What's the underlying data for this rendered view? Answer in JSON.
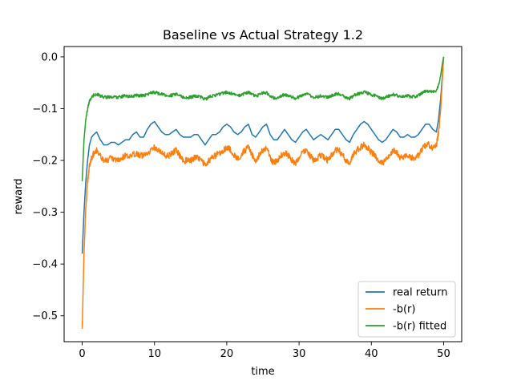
{
  "chart_data": {
    "type": "line",
    "title": "Baseline vs Actual Strategy 1.2",
    "xlabel": "time",
    "ylabel": "reward",
    "xlim": [
      -2.5,
      52.5
    ],
    "ylim": [
      -0.55,
      0.02
    ],
    "xticks": [
      0,
      10,
      20,
      30,
      40,
      50
    ],
    "yticks": [
      0.0,
      -0.1,
      -0.2,
      -0.3,
      -0.4,
      -0.5
    ],
    "xtick_labels": [
      "0",
      "10",
      "20",
      "30",
      "40",
      "50"
    ],
    "ytick_labels": [
      "0.0",
      "−0.1",
      "−0.2",
      "−0.3",
      "−0.4",
      "−0.5"
    ],
    "grid": false,
    "legend_position": "lower-right",
    "series": [
      {
        "name": "real return",
        "color": "#1f77b4",
        "x": [
          0,
          0.25,
          0.5,
          0.75,
          1,
          1.3,
          1.6,
          2,
          2.5,
          3,
          3.5,
          4,
          4.5,
          5,
          5.5,
          6,
          6.5,
          7,
          7.5,
          8,
          8.5,
          9,
          9.5,
          10,
          10.5,
          11,
          11.5,
          12,
          12.5,
          13,
          13.5,
          14,
          14.5,
          15,
          15.5,
          16,
          16.5,
          17,
          17.5,
          18,
          18.5,
          19,
          19.5,
          20,
          20.5,
          21,
          21.5,
          22,
          22.5,
          23,
          23.5,
          24,
          24.5,
          25,
          25.5,
          26,
          26.5,
          27,
          27.5,
          28,
          28.5,
          29,
          29.5,
          30,
          30.5,
          31,
          31.5,
          32,
          32.5,
          33,
          33.5,
          34,
          34.5,
          35,
          35.5,
          36,
          36.5,
          37,
          37.5,
          38,
          38.5,
          39,
          39.5,
          40,
          40.5,
          41,
          41.5,
          42,
          42.5,
          43,
          43.5,
          44,
          44.5,
          45,
          45.5,
          46,
          46.5,
          47,
          47.5,
          48,
          48.5,
          49,
          49.3,
          49.6,
          49.8,
          50
        ],
        "y": [
          -0.38,
          -0.3,
          -0.24,
          -0.2,
          -0.17,
          -0.155,
          -0.15,
          -0.145,
          -0.16,
          -0.17,
          -0.17,
          -0.165,
          -0.165,
          -0.17,
          -0.165,
          -0.16,
          -0.16,
          -0.15,
          -0.145,
          -0.155,
          -0.155,
          -0.14,
          -0.13,
          -0.125,
          -0.135,
          -0.145,
          -0.15,
          -0.15,
          -0.145,
          -0.14,
          -0.15,
          -0.155,
          -0.155,
          -0.155,
          -0.15,
          -0.15,
          -0.16,
          -0.17,
          -0.16,
          -0.15,
          -0.15,
          -0.145,
          -0.135,
          -0.13,
          -0.135,
          -0.145,
          -0.15,
          -0.145,
          -0.135,
          -0.13,
          -0.15,
          -0.155,
          -0.145,
          -0.135,
          -0.13,
          -0.15,
          -0.16,
          -0.16,
          -0.15,
          -0.14,
          -0.15,
          -0.16,
          -0.165,
          -0.155,
          -0.145,
          -0.14,
          -0.15,
          -0.16,
          -0.155,
          -0.15,
          -0.155,
          -0.16,
          -0.15,
          -0.14,
          -0.14,
          -0.15,
          -0.16,
          -0.165,
          -0.15,
          -0.14,
          -0.13,
          -0.125,
          -0.13,
          -0.14,
          -0.15,
          -0.16,
          -0.165,
          -0.16,
          -0.15,
          -0.14,
          -0.145,
          -0.155,
          -0.155,
          -0.15,
          -0.155,
          -0.155,
          -0.15,
          -0.14,
          -0.13,
          -0.13,
          -0.14,
          -0.145,
          -0.12,
          -0.08,
          -0.04,
          0.0
        ],
        "noise": 0
      },
      {
        "name": "-b(r)",
        "color": "#ff7f0e",
        "x": [
          0,
          0.25,
          0.5,
          0.75,
          1,
          1.3,
          1.6,
          2,
          2.5,
          3,
          3.5,
          4,
          4.5,
          5,
          5.5,
          6,
          6.5,
          7,
          7.5,
          8,
          8.5,
          9,
          9.5,
          10,
          10.5,
          11,
          11.5,
          12,
          12.5,
          13,
          13.5,
          14,
          14.5,
          15,
          15.5,
          16,
          16.5,
          17,
          17.5,
          18,
          18.5,
          19,
          19.5,
          20,
          20.5,
          21,
          21.5,
          22,
          22.5,
          23,
          23.5,
          24,
          24.5,
          25,
          25.5,
          26,
          26.5,
          27,
          27.5,
          28,
          28.5,
          29,
          29.5,
          30,
          30.5,
          31,
          31.5,
          32,
          32.5,
          33,
          33.5,
          34,
          34.5,
          35,
          35.5,
          36,
          36.5,
          37,
          37.5,
          38,
          38.5,
          39,
          39.5,
          40,
          40.5,
          41,
          41.5,
          42,
          42.5,
          43,
          43.5,
          44,
          44.5,
          45,
          45.5,
          46,
          46.5,
          47,
          47.5,
          48,
          48.5,
          49,
          49.3,
          49.6,
          49.8,
          50
        ],
        "y": [
          -0.525,
          -0.38,
          -0.29,
          -0.24,
          -0.21,
          -0.195,
          -0.185,
          -0.18,
          -0.19,
          -0.2,
          -0.2,
          -0.195,
          -0.2,
          -0.2,
          -0.195,
          -0.19,
          -0.195,
          -0.19,
          -0.185,
          -0.19,
          -0.19,
          -0.185,
          -0.18,
          -0.175,
          -0.18,
          -0.185,
          -0.19,
          -0.19,
          -0.185,
          -0.18,
          -0.19,
          -0.2,
          -0.2,
          -0.2,
          -0.195,
          -0.195,
          -0.2,
          -0.21,
          -0.2,
          -0.195,
          -0.19,
          -0.185,
          -0.18,
          -0.175,
          -0.18,
          -0.19,
          -0.195,
          -0.19,
          -0.18,
          -0.175,
          -0.19,
          -0.2,
          -0.19,
          -0.18,
          -0.175,
          -0.195,
          -0.205,
          -0.2,
          -0.19,
          -0.185,
          -0.19,
          -0.2,
          -0.205,
          -0.195,
          -0.185,
          -0.18,
          -0.19,
          -0.2,
          -0.195,
          -0.19,
          -0.195,
          -0.2,
          -0.19,
          -0.18,
          -0.18,
          -0.19,
          -0.2,
          -0.205,
          -0.19,
          -0.18,
          -0.175,
          -0.17,
          -0.175,
          -0.185,
          -0.19,
          -0.2,
          -0.205,
          -0.2,
          -0.19,
          -0.18,
          -0.185,
          -0.195,
          -0.195,
          -0.19,
          -0.195,
          -0.195,
          -0.19,
          -0.18,
          -0.17,
          -0.17,
          -0.175,
          -0.17,
          -0.145,
          -0.1,
          -0.05,
          0.0
        ],
        "noise": 0.006
      },
      {
        "name": "-b(r) fitted",
        "color": "#2ca02c",
        "x": [
          0,
          0.25,
          0.5,
          0.75,
          1,
          1.3,
          1.6,
          2,
          2.5,
          3,
          3.5,
          4,
          4.5,
          5,
          5.5,
          6,
          6.5,
          7,
          7.5,
          8,
          8.5,
          9,
          9.5,
          10,
          10.5,
          11,
          11.5,
          12,
          12.5,
          13,
          13.5,
          14,
          14.5,
          15,
          15.5,
          16,
          16.5,
          17,
          17.5,
          18,
          18.5,
          19,
          19.5,
          20,
          20.5,
          21,
          21.5,
          22,
          22.5,
          23,
          23.5,
          24,
          24.5,
          25,
          25.5,
          26,
          26.5,
          27,
          27.5,
          28,
          28.5,
          29,
          29.5,
          30,
          30.5,
          31,
          31.5,
          32,
          32.5,
          33,
          33.5,
          34,
          34.5,
          35,
          35.5,
          36,
          36.5,
          37,
          37.5,
          38,
          38.5,
          39,
          39.5,
          40,
          40.5,
          41,
          41.5,
          42,
          42.5,
          43,
          43.5,
          44,
          44.5,
          45,
          45.5,
          46,
          46.5,
          47,
          47.5,
          48,
          48.5,
          49,
          49.3,
          49.6,
          49.8,
          50
        ],
        "y": [
          -0.24,
          -0.16,
          -0.12,
          -0.1,
          -0.085,
          -0.078,
          -0.074,
          -0.072,
          -0.075,
          -0.078,
          -0.078,
          -0.077,
          -0.078,
          -0.078,
          -0.077,
          -0.075,
          -0.077,
          -0.076,
          -0.074,
          -0.075,
          -0.075,
          -0.072,
          -0.07,
          -0.068,
          -0.07,
          -0.072,
          -0.074,
          -0.075,
          -0.074,
          -0.072,
          -0.075,
          -0.078,
          -0.079,
          -0.078,
          -0.076,
          -0.076,
          -0.078,
          -0.082,
          -0.078,
          -0.075,
          -0.074,
          -0.072,
          -0.07,
          -0.068,
          -0.07,
          -0.073,
          -0.075,
          -0.073,
          -0.07,
          -0.068,
          -0.073,
          -0.076,
          -0.073,
          -0.07,
          -0.069,
          -0.075,
          -0.079,
          -0.078,
          -0.075,
          -0.073,
          -0.075,
          -0.078,
          -0.08,
          -0.077,
          -0.073,
          -0.071,
          -0.074,
          -0.078,
          -0.077,
          -0.075,
          -0.077,
          -0.078,
          -0.075,
          -0.072,
          -0.071,
          -0.074,
          -0.078,
          -0.08,
          -0.075,
          -0.072,
          -0.07,
          -0.068,
          -0.07,
          -0.073,
          -0.075,
          -0.078,
          -0.08,
          -0.078,
          -0.075,
          -0.072,
          -0.074,
          -0.077,
          -0.077,
          -0.075,
          -0.077,
          -0.077,
          -0.075,
          -0.07,
          -0.066,
          -0.066,
          -0.068,
          -0.064,
          -0.055,
          -0.035,
          -0.015,
          0.0
        ],
        "noise": 0.003
      }
    ]
  }
}
